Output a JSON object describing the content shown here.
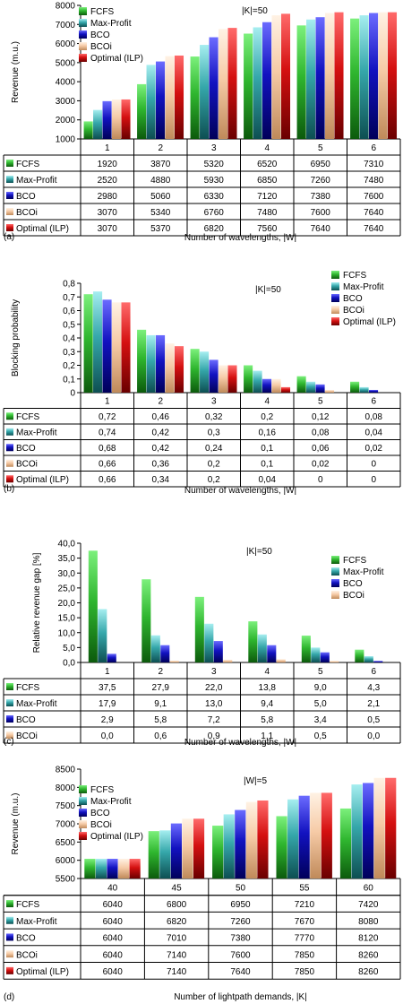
{
  "series_styles": [
    {
      "name": "FCFS",
      "top": "#7cf07c",
      "mid": "#2fb62f",
      "bottom": "#0c5a0c"
    },
    {
      "name": "Max-Profit",
      "top": "#a6eef0",
      "mid": "#35a7aa",
      "bottom": "#0d4f52"
    },
    {
      "name": "BCO",
      "top": "#6b6bff",
      "mid": "#1212c0",
      "bottom": "#00005a"
    },
    {
      "name": "BCOi",
      "top": "#fff2e4",
      "mid": "#f6cba7",
      "bottom": "#c08a5a"
    },
    {
      "name": "Optimal (ILP)",
      "top": "#ff6a6a",
      "mid": "#d41010",
      "bottom": "#6a0000"
    }
  ],
  "chart_data": [
    {
      "type": "bar",
      "panel_label": "(a)",
      "annotation": "|K|=50",
      "ylabel": "Revenue (m.u.)",
      "xlabel": "Number of wavelengths, |W|",
      "ylim": [
        1000,
        8000
      ],
      "yticks": [
        "1000",
        "2000",
        "3000",
        "4000",
        "5000",
        "6000",
        "7000",
        "8000"
      ],
      "legend_position": "top-left",
      "categories": [
        "1",
        "2",
        "3",
        "4",
        "5",
        "6"
      ],
      "series": [
        {
          "name": "FCFS",
          "values": [
            1920,
            3870,
            5320,
            6520,
            6950,
            7310
          ],
          "labels": [
            "1920",
            "3870",
            "5320",
            "6520",
            "6950",
            "7310"
          ]
        },
        {
          "name": "Max-Profit",
          "values": [
            2520,
            4880,
            5930,
            6850,
            7260,
            7480
          ],
          "labels": [
            "2520",
            "4880",
            "5930",
            "6850",
            "7260",
            "7480"
          ]
        },
        {
          "name": "BCO",
          "values": [
            2980,
            5060,
            6330,
            7120,
            7380,
            7600
          ],
          "labels": [
            "2980",
            "5060",
            "6330",
            "7120",
            "7380",
            "7600"
          ]
        },
        {
          "name": "BCOi",
          "values": [
            3070,
            5340,
            6760,
            7480,
            7600,
            7640
          ],
          "labels": [
            "3070",
            "5340",
            "6760",
            "7480",
            "7600",
            "7640"
          ]
        },
        {
          "name": "Optimal (ILP)",
          "values": [
            3070,
            5370,
            6820,
            7560,
            7640,
            7640
          ],
          "labels": [
            "3070",
            "5370",
            "6820",
            "7560",
            "7640",
            "7640"
          ]
        }
      ]
    },
    {
      "type": "bar",
      "panel_label": "(b)",
      "annotation": "|K|=50",
      "ylabel": "Blocking probability",
      "xlabel": "Number of wavelengths, |W|",
      "ylim": [
        0,
        0.8
      ],
      "yticks": [
        "0",
        "0,1",
        "0,2",
        "0,3",
        "0,4",
        "0,5",
        "0,6",
        "0,7",
        "0,8"
      ],
      "legend_position": "top-right",
      "categories": [
        "1",
        "2",
        "3",
        "4",
        "5",
        "6"
      ],
      "series": [
        {
          "name": "FCFS",
          "values": [
            0.72,
            0.46,
            0.32,
            0.2,
            0.12,
            0.08
          ],
          "labels": [
            "0,72",
            "0,46",
            "0,32",
            "0,2",
            "0,12",
            "0,08"
          ]
        },
        {
          "name": "Max-Profit",
          "values": [
            0.74,
            0.42,
            0.3,
            0.16,
            0.08,
            0.04
          ],
          "labels": [
            "0,74",
            "0,42",
            "0,3",
            "0,16",
            "0,08",
            "0,04"
          ]
        },
        {
          "name": "BCO",
          "values": [
            0.68,
            0.42,
            0.24,
            0.1,
            0.06,
            0.02
          ],
          "labels": [
            "0,68",
            "0,42",
            "0,24",
            "0,1",
            "0,06",
            "0,02"
          ]
        },
        {
          "name": "BCOi",
          "values": [
            0.66,
            0.36,
            0.2,
            0.1,
            0.02,
            0
          ],
          "labels": [
            "0,66",
            "0,36",
            "0,2",
            "0,1",
            "0,02",
            "0"
          ]
        },
        {
          "name": "Optimal (ILP)",
          "values": [
            0.66,
            0.34,
            0.2,
            0.04,
            0,
            0
          ],
          "labels": [
            "0,66",
            "0,34",
            "0,2",
            "0,04",
            "0",
            "0"
          ]
        }
      ]
    },
    {
      "type": "bar",
      "panel_label": "(c)",
      "annotation": "|K|=50",
      "ylabel": "Relative revenue gap [%]",
      "xlabel": "Number of wavelengths, |W|",
      "ylim": [
        0,
        40
      ],
      "yticks": [
        "0,0",
        "5,0",
        "10,0",
        "15,0",
        "20,0",
        "25,0",
        "30,0",
        "35,0",
        "40,0"
      ],
      "legend_position": "top-right",
      "categories": [
        "1",
        "2",
        "3",
        "4",
        "5",
        "6"
      ],
      "series": [
        {
          "name": "FCFS",
          "values": [
            37.5,
            27.9,
            22.0,
            13.8,
            9.0,
            4.3
          ],
          "labels": [
            "37,5",
            "27,9",
            "22,0",
            "13,8",
            "9,0",
            "4,3"
          ]
        },
        {
          "name": "Max-Profit",
          "values": [
            17.9,
            9.1,
            13.0,
            9.4,
            5.0,
            2.1
          ],
          "labels": [
            "17,9",
            "9,1",
            "13,0",
            "9,4",
            "5,0",
            "2,1"
          ]
        },
        {
          "name": "BCO",
          "values": [
            2.9,
            5.8,
            7.2,
            5.8,
            3.4,
            0.5
          ],
          "labels": [
            "2,9",
            "5,8",
            "7,2",
            "5,8",
            "3,4",
            "0,5"
          ]
        },
        {
          "name": "BCOi",
          "values": [
            0.0,
            0.6,
            0.9,
            1.1,
            0.5,
            0.0
          ],
          "labels": [
            "0,0",
            "0,6",
            "0,9",
            "1,1",
            "0,5",
            "0,0"
          ]
        }
      ]
    },
    {
      "type": "bar",
      "panel_label": "(d)",
      "annotation": "|W|=5",
      "ylabel": "Revenue (m.u.)",
      "xlabel": "Number of lightpath demands, |K|",
      "ylim": [
        5500,
        8500
      ],
      "yticks": [
        "5500",
        "6000",
        "6500",
        "7000",
        "7500",
        "8000",
        "8500"
      ],
      "legend_position": "top-left",
      "categories": [
        "40",
        "45",
        "50",
        "55",
        "60"
      ],
      "series": [
        {
          "name": "FCFS",
          "values": [
            6040,
            6800,
            6950,
            7210,
            7420
          ],
          "labels": [
            "6040",
            "6800",
            "6950",
            "7210",
            "7420"
          ]
        },
        {
          "name": "Max-Profit",
          "values": [
            6040,
            6820,
            7260,
            7670,
            8080
          ],
          "labels": [
            "6040",
            "6820",
            "7260",
            "7670",
            "8080"
          ]
        },
        {
          "name": "BCO",
          "values": [
            6040,
            7010,
            7380,
            7770,
            8120
          ],
          "labels": [
            "6040",
            "7010",
            "7380",
            "7770",
            "8120"
          ]
        },
        {
          "name": "BCOi",
          "values": [
            6040,
            7140,
            7600,
            7850,
            8260
          ],
          "labels": [
            "6040",
            "7140",
            "7600",
            "7850",
            "8260"
          ]
        },
        {
          "name": "Optimal (ILP)",
          "values": [
            6040,
            7140,
            7640,
            7850,
            8260
          ],
          "labels": [
            "6040",
            "7140",
            "7640",
            "7850",
            "8260"
          ]
        }
      ]
    }
  ]
}
